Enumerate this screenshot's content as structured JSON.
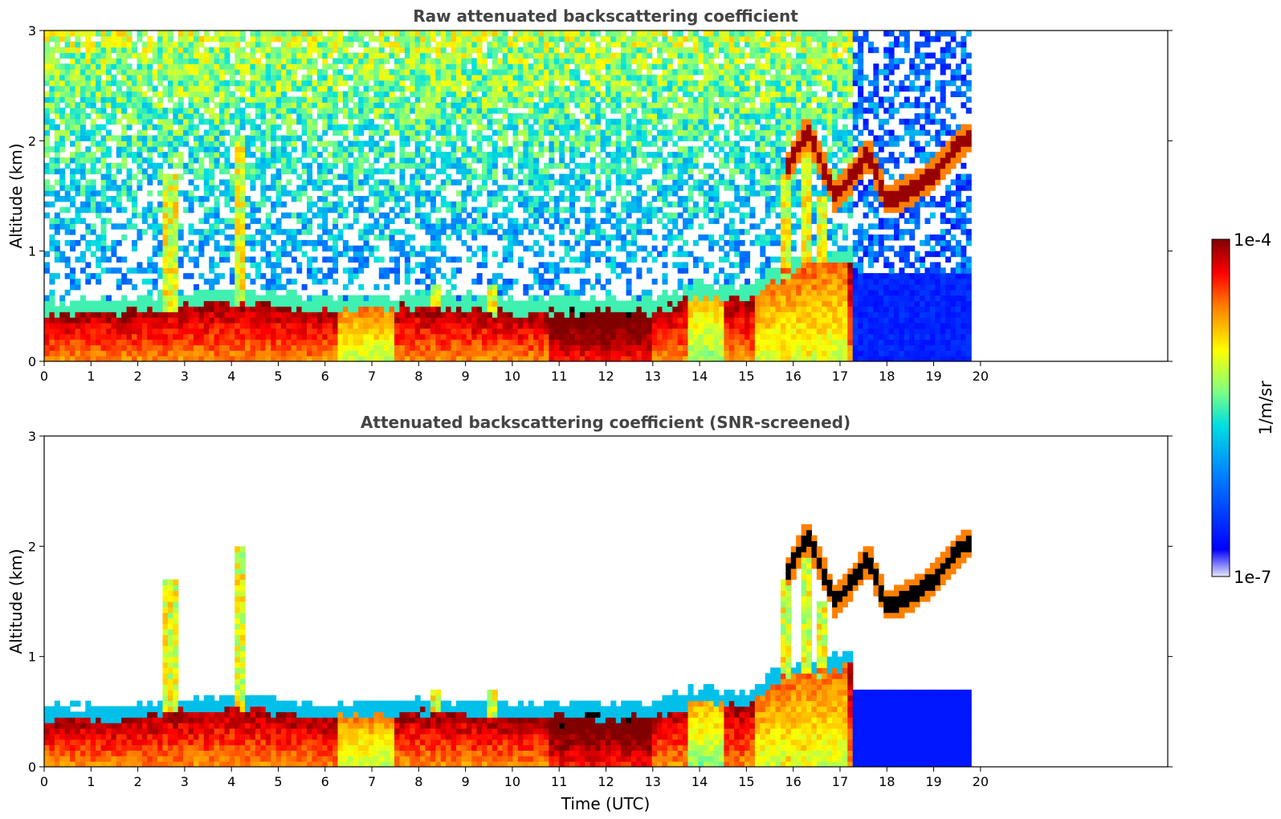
{
  "chart_data": {
    "type": "heatmap",
    "panels": [
      {
        "title": "Raw attenuated backscattering coefficient",
        "ylabel": "Altitude (km)",
        "xlabel": "",
        "xlim": [
          0,
          24
        ],
        "ylim": [
          0,
          3
        ],
        "xticks": [
          "0",
          "1",
          "2",
          "3",
          "4",
          "5",
          "6",
          "7",
          "8",
          "9",
          "10",
          "11",
          "12",
          "13",
          "14",
          "15",
          "16",
          "17",
          "18",
          "19",
          "20"
        ],
        "yticks": [
          "0",
          "1",
          "2",
          "3"
        ],
        "screened": false
      },
      {
        "title": "Attenuated backscattering coefficient (SNR-screened)",
        "ylabel": "Altitude (km)",
        "xlabel": "Time (UTC)",
        "xlim": [
          0,
          24
        ],
        "ylim": [
          0,
          3
        ],
        "xticks": [
          "0",
          "1",
          "2",
          "3",
          "4",
          "5",
          "6",
          "7",
          "8",
          "9",
          "10",
          "11",
          "12",
          "13",
          "14",
          "15",
          "16",
          "17",
          "18",
          "19",
          "20"
        ],
        "yticks": [
          "0",
          "1",
          "2",
          "3"
        ],
        "screened": true
      }
    ],
    "data_end_hour": 19.8,
    "aerosol_layer_top_km": [
      [
        0,
        0.42
      ],
      [
        2,
        0.45
      ],
      [
        4,
        0.55
      ],
      [
        6,
        0.45
      ],
      [
        8,
        0.5
      ],
      [
        10,
        0.45
      ],
      [
        12,
        0.45
      ],
      [
        13,
        0.45
      ],
      [
        14,
        0.6
      ],
      [
        15,
        0.55
      ],
      [
        15.8,
        0.8
      ],
      [
        17,
        0.9
      ]
    ],
    "cloud_layer_km": [
      [
        15.8,
        1.7
      ],
      [
        16.3,
        2.1
      ],
      [
        16.9,
        1.5
      ],
      [
        17.3,
        1.7
      ],
      [
        17.6,
        1.9
      ],
      [
        18,
        1.45
      ],
      [
        18.5,
        1.55
      ],
      [
        19,
        1.7
      ],
      [
        19.5,
        1.95
      ],
      [
        19.8,
        2.05
      ]
    ],
    "colorbar": {
      "label": "1/m/sr",
      "min_label": "1e-7",
      "max_label": "1e-4",
      "colormap": [
        "#e6e6f8",
        "#0000ff",
        "#0080ff",
        "#00e0e0",
        "#80ff80",
        "#ffff00",
        "#ff8000",
        "#ff0000",
        "#800000"
      ]
    }
  }
}
